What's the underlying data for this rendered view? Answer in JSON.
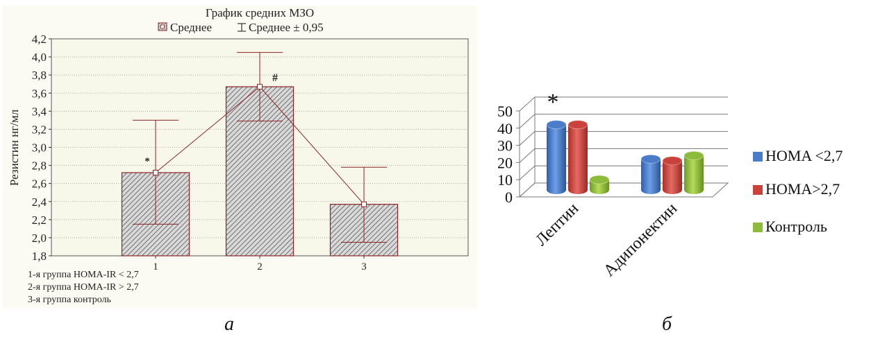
{
  "panel_a": {
    "caption": "а",
    "legend_mean": "Среднее",
    "legend_ci": "Среднее ± 0,95",
    "notes": [
      "1-я группа HOMA-IR < 2,7",
      "2-я группа HOMA-IR > 2,7",
      "3-я группа контроль"
    ]
  },
  "panel_b": {
    "caption": "б",
    "star": "*"
  },
  "colors": {
    "plot_bg": "#f7f7ea",
    "bar_fill": "#d9d9d9",
    "bar_edge": "#8b2323",
    "hatch": "#555555",
    "blue": "#4a7cc9",
    "red": "#c9423c",
    "green": "#8dbb3a"
  },
  "chart_data": [
    {
      "type": "bar",
      "title": "График средних МЗО",
      "xlabel": "",
      "ylabel": "Резистин нг/мл",
      "categories": [
        "1",
        "2",
        "3"
      ],
      "values": [
        2.72,
        3.67,
        2.37
      ],
      "error_low": [
        2.15,
        3.29,
        1.95
      ],
      "error_high": [
        3.3,
        4.05,
        2.78
      ],
      "annotations": [
        "*",
        "#",
        ""
      ],
      "ylim": [
        1.8,
        4.2
      ],
      "yticks": [
        "1,8",
        "2,0",
        "2,2",
        "2,4",
        "2,6",
        "2,8",
        "3,0",
        "3,2",
        "3,4",
        "3,6",
        "3,8",
        "4,0",
        "4,2"
      ],
      "xlim": [
        0,
        4
      ],
      "grid": true,
      "legend": "top"
    },
    {
      "type": "bar",
      "title": "",
      "categories": [
        "Лептин",
        "Адипонектин"
      ],
      "series": [
        {
          "name": "HOMA <2,7",
          "values": [
            38,
            18
          ]
        },
        {
          "name": "HOMA>2,7",
          "values": [
            38,
            17
          ]
        },
        {
          "name": "Контроль",
          "values": [
            6,
            20
          ]
        }
      ],
      "annotations": [
        "*",
        ""
      ],
      "ylim": [
        0,
        50
      ],
      "yticks": [
        "0",
        "10",
        "20",
        "30",
        "40",
        "50"
      ],
      "grid": true,
      "legend": "right"
    }
  ]
}
